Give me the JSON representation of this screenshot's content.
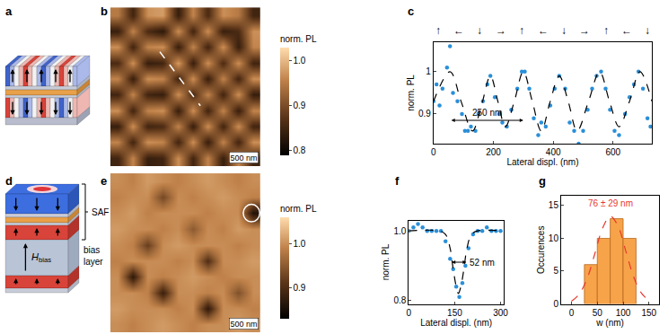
{
  "chart_data": [
    {
      "panel": "a",
      "type": "diagram"
    },
    {
      "panel": "b",
      "type": "heatmap",
      "scale_bar": "500 nm",
      "colorbar": {
        "title": "norm. PL",
        "zlim": [
          0.79,
          1.03
        ],
        "ticks": [
          0.8,
          0.9,
          {
            "value": 1,
            "label": "1.0"
          }
        ]
      },
      "cells": [
        [
          0.95,
          0.85,
          0.97,
          0.98,
          0.84,
          0.96,
          0.86,
          0.97,
          0.95,
          0.85
        ],
        [
          0.84,
          0.96,
          0.86,
          0.83,
          0.97,
          0.85,
          0.97,
          0.84,
          0.86,
          0.97
        ],
        [
          0.97,
          0.85,
          0.96,
          0.97,
          0.84,
          0.96,
          0.85,
          0.97,
          0.84,
          0.96
        ],
        [
          0.86,
          0.97,
          0.84,
          0.85,
          0.98,
          0.84,
          0.97,
          0.86,
          0.97,
          0.85
        ],
        [
          0.96,
          0.84,
          0.97,
          0.96,
          0.85,
          0.97,
          0.84,
          0.96,
          0.85,
          0.97
        ],
        [
          0.85,
          0.96,
          0.85,
          0.84,
          0.97,
          0.86,
          0.96,
          0.85,
          0.97,
          0.84
        ],
        [
          0.97,
          0.85,
          0.96,
          0.97,
          0.84,
          0.97,
          0.85,
          0.96,
          0.84,
          0.96
        ],
        [
          0.84,
          0.97,
          0.85,
          0.86,
          0.96,
          0.84,
          0.97,
          0.85,
          0.97,
          0.85
        ],
        [
          0.96,
          0.85,
          0.97,
          0.96,
          0.85,
          0.97,
          0.84,
          0.96,
          0.85,
          0.97
        ],
        [
          0.85,
          0.96,
          0.84,
          0.85,
          0.97,
          0.85,
          0.96,
          0.84,
          0.96,
          0.85
        ]
      ]
    },
    {
      "panel": "c",
      "type": "scatter",
      "xlabel": "Lateral displ. (nm)",
      "ylabel": "norm. PL",
      "xlim": [
        0,
        730
      ],
      "ylim": [
        0.83,
        1.07
      ],
      "xticks": [
        0,
        200,
        400,
        600
      ],
      "yticks": [
        0.9,
        1
      ],
      "grid": false,
      "top_labels": [
        "↑",
        "←",
        "↓",
        "→",
        "↑",
        "←",
        "↓",
        "→",
        "↑",
        "←",
        "↓"
      ],
      "measures": [
        {
          "text": "250 nm",
          "x0": 55,
          "x1": 300,
          "y": 0.885
        }
      ],
      "series": [
        {
          "type": "scatter",
          "marker": "circle",
          "color": "#2a8fd8",
          "x": [
            0,
            10,
            20,
            30,
            45,
            55,
            65,
            80,
            95,
            105,
            115,
            125,
            140,
            150,
            165,
            180,
            190,
            205,
            220,
            230,
            245,
            260,
            280,
            295,
            305,
            320,
            335,
            350,
            360,
            375,
            390,
            405,
            420,
            440,
            455,
            470,
            485,
            500,
            515,
            530,
            545,
            560,
            575,
            590,
            605,
            620,
            640,
            655,
            670,
            685,
            700,
            715,
            725
          ],
          "values": [
            0.93,
            0.97,
            0.92,
            0.96,
            1.01,
            1.06,
            0.95,
            0.93,
            0.9,
            0.86,
            0.86,
            0.87,
            0.86,
            0.9,
            0.93,
            0.97,
            0.99,
            0.94,
            0.9,
            0.88,
            0.87,
            0.91,
            0.96,
            1.0,
            1.0,
            0.96,
            0.89,
            0.85,
            0.88,
            0.87,
            0.92,
            0.96,
            0.99,
            0.96,
            0.88,
            0.86,
            0.83,
            0.86,
            0.91,
            0.96,
            0.99,
            1.0,
            0.96,
            0.91,
            0.86,
            0.85,
            0.9,
            0.94,
            0.97,
            1.0,
            0.96,
            0.89,
            0.87
          ]
        },
        {
          "type": "line",
          "line_style": "dashed",
          "color": "#000000",
          "x": [
            0,
            55,
            92,
            130,
            160,
            190,
            215,
            240,
            270,
            300,
            330,
            360,
            390,
            420,
            450,
            480,
            518,
            555,
            588,
            620,
            655,
            690,
            730
          ],
          "values": [
            0.93,
            1.0,
            0.93,
            0.86,
            0.92,
            0.99,
            0.93,
            0.87,
            0.93,
            1.0,
            0.93,
            0.86,
            0.93,
            0.99,
            0.93,
            0.86,
            0.93,
            1.0,
            0.93,
            0.87,
            0.93,
            1.0,
            0.93
          ]
        }
      ]
    },
    {
      "panel": "d",
      "type": "diagram",
      "texts": {
        "saf": "SAF",
        "field": {
          "symbol": "H",
          "subscript": "bias"
        },
        "layer": "bias layer"
      }
    },
    {
      "panel": "e",
      "type": "heatmap",
      "scale_bar": "500 nm",
      "colorbar": {
        "title": "norm. PL",
        "zlim": [
          0.83,
          1.06
        ],
        "ticks": [
          0.9,
          {
            "value": 1,
            "label": "1.0"
          }
        ]
      },
      "cells": [
        [
          1.0,
          0.99,
          1.01,
          1.0,
          0.99,
          1.0,
          1.01,
          1.0,
          0.99,
          1.0
        ],
        [
          0.99,
          1.0,
          1.0,
          0.93,
          1.0,
          0.99,
          1.0,
          1.01,
          1.0,
          0.99
        ],
        [
          1.0,
          1.01,
          0.99,
          1.0,
          1.0,
          1.0,
          0.99,
          1.0,
          1.0,
          0.86
        ],
        [
          1.01,
          1.0,
          1.0,
          0.99,
          1.0,
          0.95,
          1.0,
          0.99,
          1.01,
          1.0
        ],
        [
          1.0,
          0.99,
          0.92,
          1.0,
          1.01,
          1.0,
          1.0,
          1.0,
          0.99,
          1.0
        ],
        [
          0.99,
          1.0,
          1.0,
          1.0,
          0.99,
          1.0,
          0.9,
          1.0,
          1.0,
          1.01
        ],
        [
          1.0,
          0.87,
          1.0,
          0.99,
          1.0,
          1.01,
          1.0,
          0.99,
          1.0,
          1.0
        ],
        [
          1.0,
          1.0,
          0.99,
          0.88,
          1.0,
          1.0,
          0.99,
          1.0,
          0.94,
          1.0
        ],
        [
          1.01,
          1.0,
          1.0,
          1.0,
          0.99,
          1.0,
          0.87,
          1.0,
          1.0,
          0.99
        ],
        [
          1.0,
          0.99,
          1.0,
          1.01,
          1.0,
          0.99,
          1.0,
          1.0,
          1.01,
          1.0
        ]
      ]
    },
    {
      "panel": "f",
      "type": "scatter",
      "xlabel": "Lateral displ. (nm)",
      "ylabel": "norm. PL",
      "xlim": [
        0,
        310
      ],
      "ylim": [
        0.79,
        1.03
      ],
      "xticks": [
        0,
        150,
        300
      ],
      "yticks": [
        0.8,
        {
          "value": 1,
          "label": "1.0"
        }
      ],
      "grid": false,
      "measures": [
        {
          "text": "52 nm",
          "x0": 136,
          "x1": 188,
          "y": 0.91
        }
      ],
      "series": [
        {
          "type": "scatter",
          "marker": "circle",
          "color": "#2a8fd8",
          "x": [
            0,
            15,
            30,
            45,
            60,
            75,
            90,
            105,
            120,
            135,
            145,
            155,
            165,
            175,
            185,
            195,
            210,
            225,
            240,
            255,
            270,
            285,
            300
          ],
          "values": [
            1.0,
            1.01,
            1.02,
            1.01,
            1.0,
            1.0,
            1.0,
            1.0,
            0.97,
            0.92,
            0.89,
            0.84,
            0.81,
            0.85,
            0.9,
            0.95,
            0.99,
            1.0,
            1.0,
            1.01,
            1.0,
            1.0,
            1.0
          ]
        },
        {
          "type": "line",
          "line_style": "dashed",
          "color": "#000000",
          "x": [
            0,
            100,
            120,
            135,
            145,
            155,
            162,
            170,
            180,
            190,
            205,
            225,
            310
          ],
          "values": [
            1,
            1,
            0.99,
            0.95,
            0.89,
            0.84,
            0.82,
            0.84,
            0.89,
            0.95,
            0.99,
            1,
            1
          ]
        }
      ]
    },
    {
      "panel": "g",
      "type": "histogram",
      "xlabel": "w (nm)",
      "ylabel": "Occurences",
      "xlim": [
        -20,
        170
      ],
      "ylim": [
        0,
        16.5
      ],
      "xticks": [
        0,
        50,
        100,
        150
      ],
      "yticks": [
        0,
        5,
        10,
        15
      ],
      "grid": false,
      "bins": [
        25,
        50,
        75,
        100,
        125
      ],
      "counts": [
        6,
        10,
        13,
        10
      ],
      "color": "#f7a34a",
      "annotations": [
        {
          "text": "76 ± 29 nm",
          "x": 76,
          "y": 14.3,
          "color": "#e8382f"
        }
      ],
      "series": [
        {
          "type": "line",
          "line_style": "dashed",
          "color": "#e8382f",
          "x": [
            0,
            15,
            30,
            45,
            60,
            75,
            90,
            105,
            120,
            135,
            150
          ],
          "values": [
            0.4,
            1.5,
            3.8,
            7.6,
            11.5,
            13.4,
            11.9,
            8.1,
            4.2,
            1.7,
            0.5
          ]
        }
      ]
    }
  ]
}
